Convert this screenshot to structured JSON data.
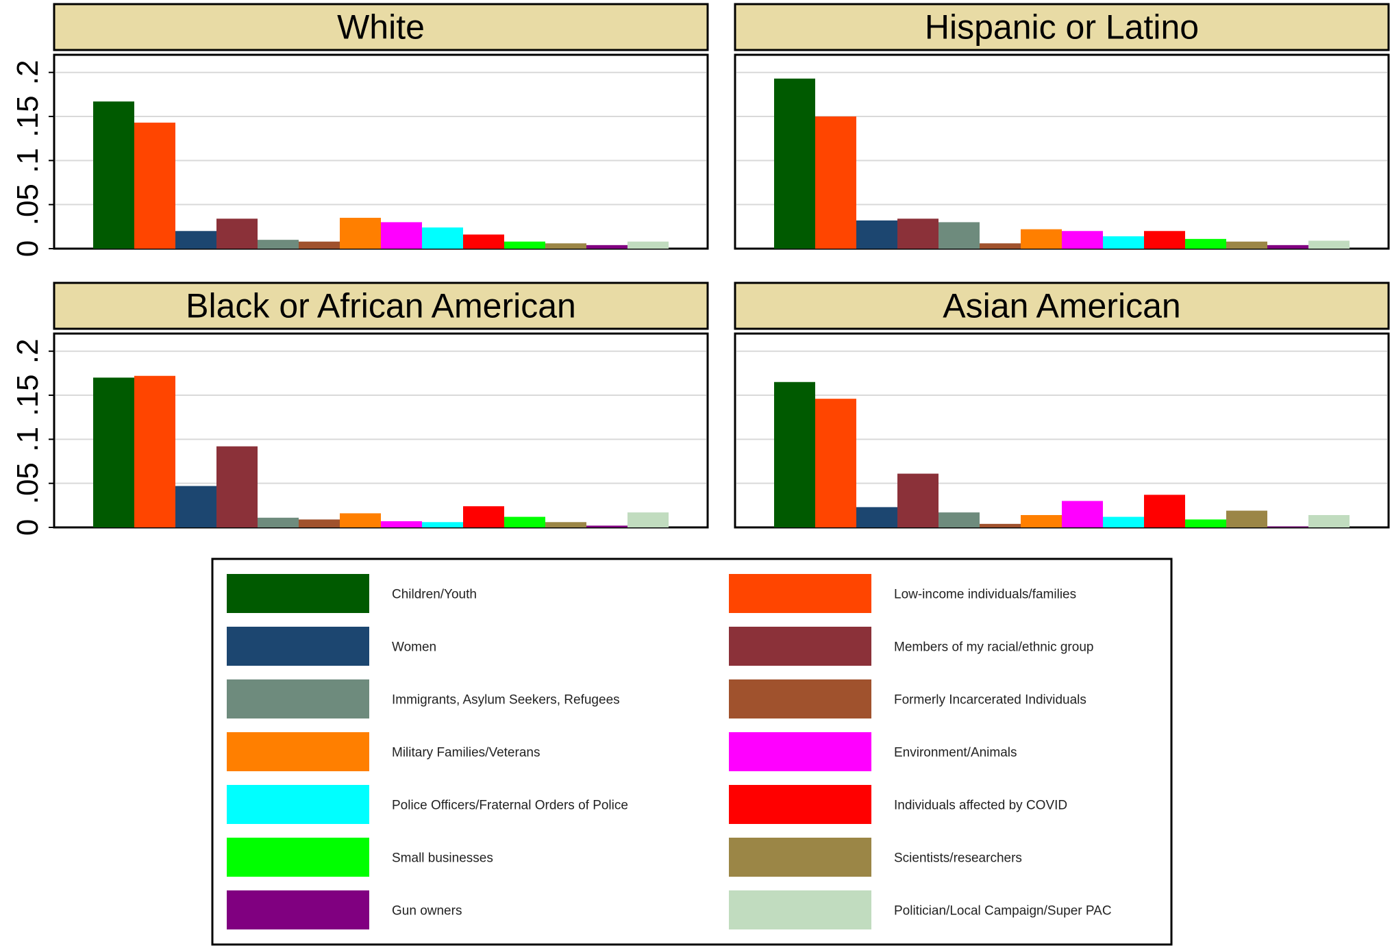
{
  "chart_data": {
    "type": "bar",
    "ylim": [
      0,
      0.22
    ],
    "yticks": [
      0,
      0.05,
      0.1,
      0.15,
      0.2
    ],
    "ytick_labels": [
      "0",
      ".05",
      ".1",
      ".15",
      ".2"
    ],
    "grid": true,
    "legend_position": "bottom",
    "categories": [
      "Children/Youth",
      "Low-income individuals/families",
      "Women",
      "Members of my racial/ethnic group",
      "Immigrants, Asylum Seekers, Refugees",
      "Formerly Incarcerated Individuals",
      "Military Families/Veterans",
      "Environment/Animals",
      "Police Officers/Fraternal Orders of Police",
      "Individuals affected by COVID",
      "Small businesses",
      "Scientists/researchers",
      "Gun owners",
      "Politician/Local Campaign/Super PAC"
    ],
    "colors": [
      "#005a00",
      "#ff4500",
      "#1c4670",
      "#8b3139",
      "#6e8b7d",
      "#a0522d",
      "#ff7f00",
      "#ff00ff",
      "#00ffff",
      "#ff0000",
      "#00ff00",
      "#9b8646",
      "#800080",
      "#c1dcbf"
    ],
    "panels": [
      {
        "title": "White",
        "values": [
          0.167,
          0.143,
          0.02,
          0.034,
          0.01,
          0.008,
          0.035,
          0.03,
          0.024,
          0.016,
          0.008,
          0.006,
          0.004,
          0.008
        ]
      },
      {
        "title": "Hispanic or Latino",
        "values": [
          0.193,
          0.15,
          0.032,
          0.034,
          0.03,
          0.006,
          0.022,
          0.02,
          0.014,
          0.02,
          0.011,
          0.008,
          0.004,
          0.009
        ]
      },
      {
        "title": "Black or African American",
        "values": [
          0.17,
          0.172,
          0.047,
          0.092,
          0.011,
          0.009,
          0.016,
          0.007,
          0.006,
          0.024,
          0.012,
          0.006,
          0.002,
          0.017
        ]
      },
      {
        "title": "Asian American",
        "values": [
          0.165,
          0.146,
          0.023,
          0.061,
          0.017,
          0.004,
          0.014,
          0.03,
          0.012,
          0.037,
          0.009,
          0.019,
          0.001,
          0.014
        ]
      }
    ]
  }
}
